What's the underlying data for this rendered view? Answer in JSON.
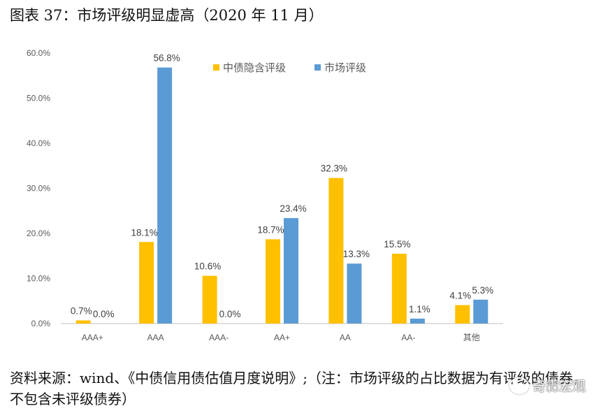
{
  "figure_title": "图表 37：市场评级明显虚高（2020 年 11 月）",
  "source_text": "资料来源：wind、《中债信用债估值月度说明》;（注：市场评级的占比数据为有评级的债券，不包含未评级债券）",
  "watermark": {
    "text": "奇霖宏观",
    "icon": "wechat-icon"
  },
  "colors": {
    "series1": "#FFC000",
    "series2": "#5B9BD5",
    "axis": "#BFBFBF",
    "text": "#595959",
    "label": "#404040"
  },
  "chart_data": {
    "type": "bar",
    "title": "",
    "categories": [
      "AAA+",
      "AAA",
      "AAA-",
      "AA+",
      "AA",
      "AA-",
      "其他"
    ],
    "series": [
      {
        "name": "中债隐含评级",
        "values": [
          0.7,
          18.1,
          10.6,
          18.7,
          32.3,
          15.5,
          4.1
        ],
        "labels": [
          "0.7%",
          "18.1%",
          "10.6%",
          "18.7%",
          "32.3%",
          "15.5%",
          "4.1%"
        ]
      },
      {
        "name": "市场评级",
        "values": [
          0.0,
          56.8,
          0.0,
          23.4,
          13.3,
          1.1,
          5.3
        ],
        "labels": [
          "0.0%",
          "56.8%",
          "0.0%",
          "23.4%",
          "13.3%",
          "1.1%",
          "5.3%"
        ]
      }
    ],
    "y_ticks": [
      "0.0%",
      "10.0%",
      "20.0%",
      "30.0%",
      "40.0%",
      "50.0%",
      "60.0%"
    ],
    "ylim": [
      0,
      60
    ],
    "xlabel": "",
    "ylabel": "",
    "grid": false,
    "legend_position": "top-right"
  }
}
